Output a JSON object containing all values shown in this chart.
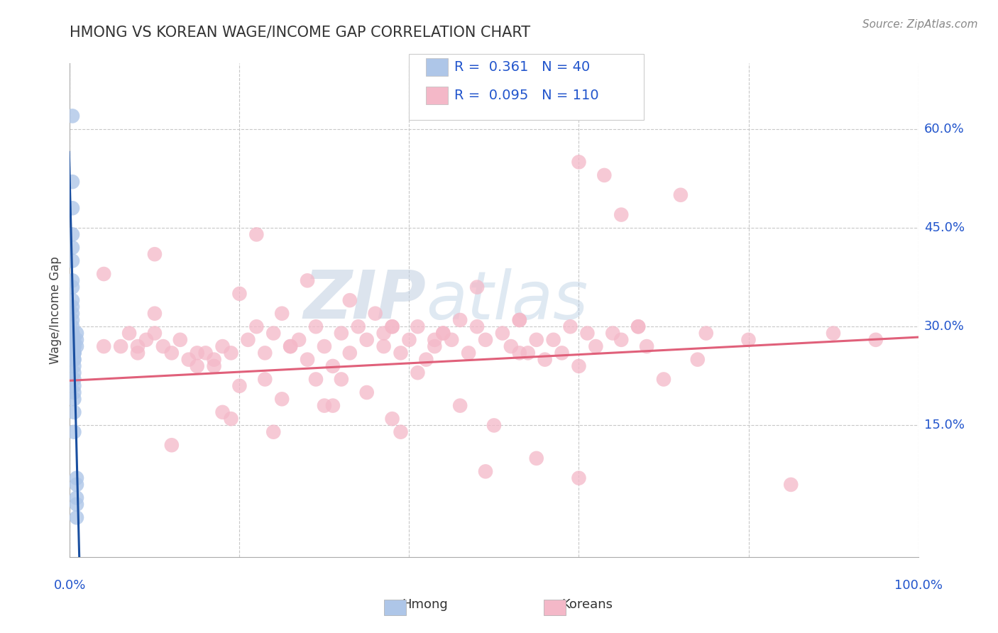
{
  "title": "HMONG VS KOREAN WAGE/INCOME GAP CORRELATION CHART",
  "source": "Source: ZipAtlas.com",
  "ylabel": "Wage/Income Gap",
  "xlim": [
    0.0,
    1.0
  ],
  "ylim": [
    -0.05,
    0.7
  ],
  "x_ticks": [
    0.0,
    0.2,
    0.4,
    0.6,
    0.8,
    1.0
  ],
  "y_ticks_right": [
    0.15,
    0.3,
    0.45,
    0.6
  ],
  "y_tick_labels_right": [
    "15.0%",
    "30.0%",
    "45.0%",
    "60.0%"
  ],
  "hmong_R": "0.361",
  "hmong_N": "40",
  "korean_R": "0.095",
  "korean_N": "110",
  "hmong_color": "#aec6e8",
  "hmong_line_color": "#1a4fa0",
  "korean_color": "#f4b8c8",
  "korean_line_color": "#e0607a",
  "background_color": "#ffffff",
  "grid_color": "#c8c8c8",
  "watermark_zip": "ZIP",
  "watermark_atlas": "atlas",
  "legend_label_hmong": "Hmong",
  "legend_label_korean": "Koreans",
  "hmong_x": [
    0.003,
    0.003,
    0.003,
    0.003,
    0.003,
    0.003,
    0.003,
    0.003,
    0.003,
    0.003,
    0.003,
    0.003,
    0.003,
    0.003,
    0.003,
    0.003,
    0.005,
    0.005,
    0.005,
    0.005,
    0.005,
    0.005,
    0.005,
    0.005,
    0.005,
    0.005,
    0.005,
    0.005,
    0.005,
    0.005,
    0.005,
    0.005,
    0.008,
    0.008,
    0.008,
    0.008,
    0.008,
    0.008,
    0.008,
    0.008
  ],
  "hmong_y": [
    0.62,
    0.52,
    0.48,
    0.44,
    0.42,
    0.4,
    0.37,
    0.36,
    0.34,
    0.33,
    0.32,
    0.31,
    0.3,
    0.29,
    0.29,
    0.28,
    0.28,
    0.27,
    0.27,
    0.26,
    0.26,
    0.26,
    0.25,
    0.25,
    0.24,
    0.23,
    0.22,
    0.21,
    0.2,
    0.19,
    0.17,
    0.14,
    0.07,
    0.06,
    0.04,
    0.03,
    0.01,
    0.29,
    0.28,
    0.27
  ],
  "korean_x": [
    0.04,
    0.06,
    0.07,
    0.08,
    0.09,
    0.1,
    0.11,
    0.12,
    0.13,
    0.14,
    0.15,
    0.16,
    0.17,
    0.18,
    0.19,
    0.2,
    0.21,
    0.22,
    0.23,
    0.24,
    0.25,
    0.26,
    0.27,
    0.28,
    0.29,
    0.3,
    0.31,
    0.32,
    0.33,
    0.34,
    0.35,
    0.36,
    0.37,
    0.38,
    0.39,
    0.4,
    0.41,
    0.42,
    0.43,
    0.44,
    0.45,
    0.46,
    0.47,
    0.48,
    0.49,
    0.5,
    0.51,
    0.52,
    0.53,
    0.54,
    0.55,
    0.56,
    0.57,
    0.58,
    0.59,
    0.6,
    0.61,
    0.62,
    0.63,
    0.64,
    0.65,
    0.67,
    0.68,
    0.7,
    0.72,
    0.75,
    0.8,
    0.85,
    0.9,
    0.95,
    0.22,
    0.28,
    0.33,
    0.38,
    0.44,
    0.48,
    0.53,
    0.29,
    0.35,
    0.41,
    0.1,
    0.15,
    0.2,
    0.25,
    0.3,
    0.04,
    0.08,
    0.18,
    0.23,
    0.38,
    0.43,
    0.49,
    0.55,
    0.6,
    0.65,
    0.1,
    0.17,
    0.24,
    0.31,
    0.37,
    0.12,
    0.19,
    0.26,
    0.32,
    0.39,
    0.46,
    0.53,
    0.6,
    0.67,
    0.74
  ],
  "korean_y": [
    0.27,
    0.27,
    0.29,
    0.26,
    0.28,
    0.29,
    0.27,
    0.26,
    0.28,
    0.25,
    0.26,
    0.26,
    0.24,
    0.27,
    0.26,
    0.35,
    0.28,
    0.3,
    0.26,
    0.29,
    0.32,
    0.27,
    0.28,
    0.25,
    0.3,
    0.27,
    0.24,
    0.29,
    0.26,
    0.3,
    0.28,
    0.32,
    0.27,
    0.3,
    0.26,
    0.28,
    0.3,
    0.25,
    0.27,
    0.29,
    0.28,
    0.31,
    0.26,
    0.3,
    0.28,
    0.15,
    0.29,
    0.27,
    0.31,
    0.26,
    0.28,
    0.25,
    0.28,
    0.26,
    0.3,
    0.07,
    0.29,
    0.27,
    0.53,
    0.29,
    0.28,
    0.3,
    0.27,
    0.22,
    0.5,
    0.29,
    0.28,
    0.06,
    0.29,
    0.28,
    0.44,
    0.37,
    0.34,
    0.3,
    0.29,
    0.36,
    0.31,
    0.22,
    0.2,
    0.23,
    0.32,
    0.24,
    0.21,
    0.19,
    0.18,
    0.38,
    0.27,
    0.17,
    0.22,
    0.16,
    0.28,
    0.08,
    0.1,
    0.55,
    0.47,
    0.41,
    0.25,
    0.14,
    0.18,
    0.29,
    0.12,
    0.16,
    0.27,
    0.22,
    0.14,
    0.18,
    0.26,
    0.24,
    0.3,
    0.25
  ],
  "hmong_line_x0": 0.0,
  "hmong_line_x1": 0.015,
  "korean_line_x0": 0.0,
  "korean_line_x1": 1.0,
  "korean_line_y0": 0.218,
  "korean_line_y1": 0.284
}
